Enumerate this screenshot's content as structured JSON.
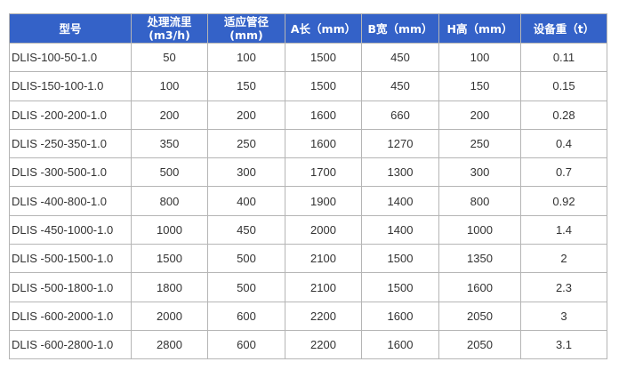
{
  "table": {
    "header_color": "#3462c8",
    "headers": [
      [
        "型号"
      ],
      [
        "处理流里",
        "(m3/h)"
      ],
      [
        "适应管径",
        "(mm)"
      ],
      [
        "A长（mm）"
      ],
      [
        "B宽（mm）"
      ],
      [
        "H高（mm）"
      ],
      [
        "设备重（t）"
      ]
    ],
    "rows": [
      [
        "DLIS-100-50-1.0",
        "50",
        "100",
        "1500",
        "450",
        "100",
        "0.11"
      ],
      [
        "DLIS-150-100-1.0",
        "100",
        "150",
        "1500",
        "450",
        "150",
        "0.15"
      ],
      [
        "DLIS -200-200-1.0",
        "200",
        "200",
        "1600",
        "660",
        "200",
        "0.28"
      ],
      [
        "DLIS -250-350-1.0",
        "350",
        "250",
        "1600",
        "1270",
        "250",
        "0.4"
      ],
      [
        "DLIS -300-500-1.0",
        "500",
        "300",
        "1700",
        "1300",
        "300",
        "0.7"
      ],
      [
        "DLIS -400-800-1.0",
        "800",
        "400",
        "1900",
        "1400",
        "800",
        "0.92"
      ],
      [
        "DLIS -450-1000-1.0",
        "1000",
        "450",
        "2000",
        "1400",
        "1000",
        "1.4"
      ],
      [
        "DLIS -500-1500-1.0",
        "1500",
        "500",
        "2100",
        "1500",
        "1350",
        "2"
      ],
      [
        "DLIS -500-1800-1.0",
        "1800",
        "500",
        "2100",
        "1500",
        "1600",
        "2.3"
      ],
      [
        "DLIS -600-2000-1.0",
        "2000",
        "600",
        "2200",
        "1600",
        "2050",
        "3"
      ],
      [
        "DLIS -600-2800-1.0",
        "2800",
        "600",
        "2200",
        "1600",
        "2050",
        "3.1"
      ]
    ]
  }
}
